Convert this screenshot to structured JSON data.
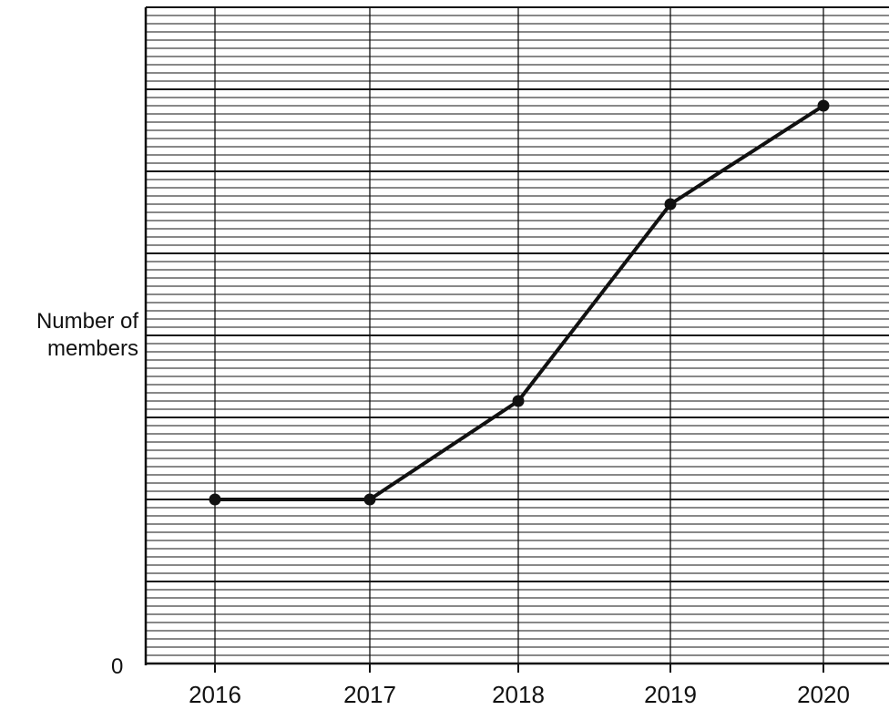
{
  "chart_data": {
    "type": "line",
    "title": "",
    "xlabel": "",
    "ylabel_lines": [
      "Number of",
      "members"
    ],
    "y_tick_labels": [
      "0"
    ],
    "categories": [
      "2016",
      "2017",
      "2018",
      "2019",
      "2020"
    ],
    "series": [
      {
        "values": [
          10,
          10,
          16,
          28,
          34
        ]
      }
    ],
    "ylim": [
      0,
      40
    ],
    "grid": true,
    "legend": "none"
  }
}
